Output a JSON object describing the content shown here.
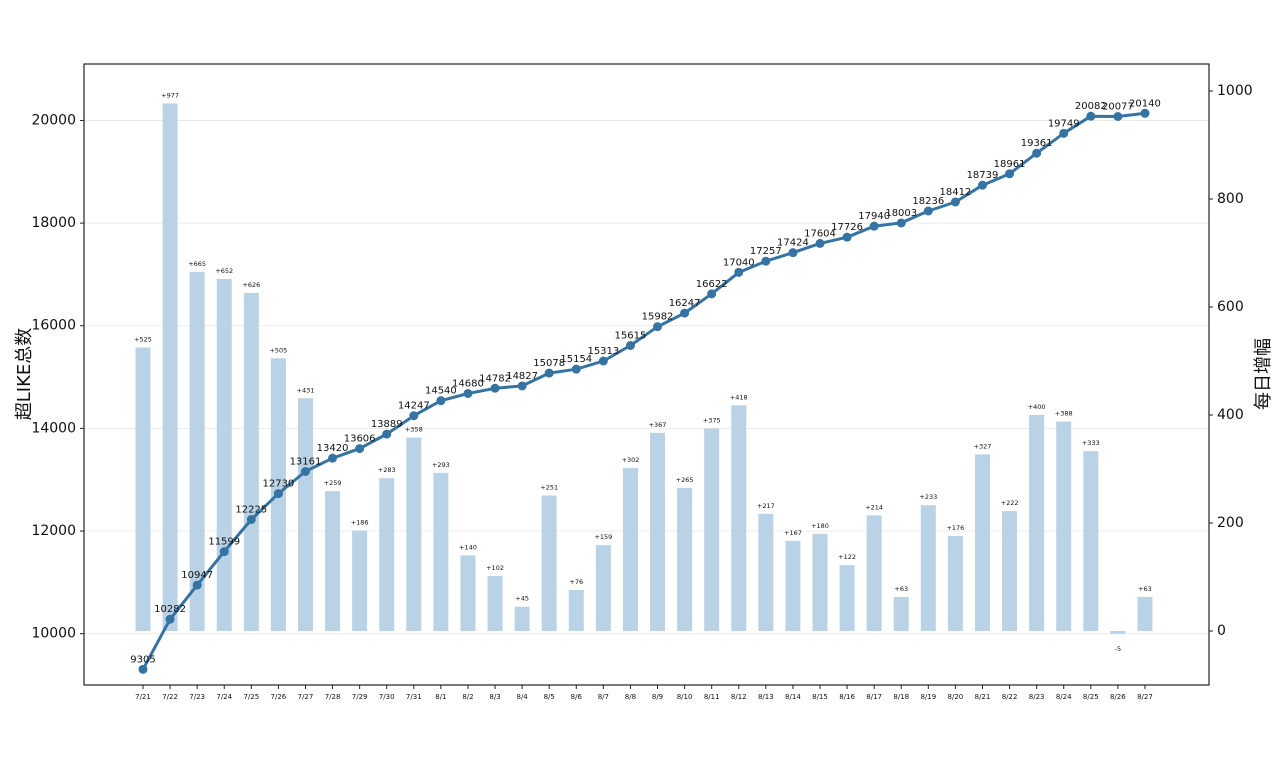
{
  "chart_data": {
    "type": "bar+line",
    "title": "",
    "categories": [
      "7/21",
      "7/22",
      "7/23",
      "7/24",
      "7/25",
      "7/26",
      "7/27",
      "7/28",
      "7/29",
      "7/30",
      "7/31",
      "8/1",
      "8/2",
      "8/3",
      "8/4",
      "8/5",
      "8/6",
      "8/7",
      "8/8",
      "8/9",
      "8/10",
      "8/11",
      "8/12",
      "8/13",
      "8/14",
      "8/15",
      "8/16",
      "8/17",
      "8/18",
      "8/19",
      "8/20",
      "8/21",
      "8/22",
      "8/23",
      "8/24",
      "8/25",
      "8/26",
      "8/27"
    ],
    "line_series": {
      "axis": "left",
      "color": "#3573a3",
      "values": [
        9305,
        10282,
        10947,
        11599,
        12225,
        12730,
        13161,
        13420,
        13606,
        13889,
        14247,
        14540,
        14680,
        14782,
        14827,
        15078,
        15154,
        15313,
        15615,
        15982,
        16247,
        16622,
        17040,
        17257,
        17424,
        17604,
        17726,
        17940,
        18003,
        18236,
        18412,
        18739,
        18961,
        19361,
        19749,
        20082,
        20077,
        20140
      ],
      "labels": [
        "9305",
        "10282",
        "10947",
        "11599",
        "12225",
        "12730",
        "13161",
        "13420",
        "13606",
        "13889",
        "14247",
        "14540",
        "14680",
        "14782",
        "14827",
        "15078",
        "15154",
        "15313",
        "15615",
        "15982",
        "16247",
        "16622",
        "17040",
        "17257",
        "17424",
        "17604",
        "17726",
        "17940",
        "18003",
        "18236",
        "18412",
        "18739",
        "18961",
        "19361",
        "19749",
        "20082",
        "20077",
        "20140"
      ]
    },
    "bar_series": {
      "axis": "right",
      "color": "#b9d2e6",
      "values": [
        525,
        977,
        665,
        652,
        626,
        505,
        431,
        259,
        186,
        283,
        358,
        293,
        140,
        102,
        45,
        251,
        76,
        159,
        302,
        367,
        265,
        375,
        418,
        217,
        167,
        180,
        122,
        214,
        63,
        233,
        176,
        327,
        222,
        400,
        388,
        333,
        -5,
        63
      ],
      "labels": [
        "+525",
        "+977",
        "+665",
        "+652",
        "+626",
        "+505",
        "+431",
        "+259",
        "+186",
        "+283",
        "+358",
        "+293",
        "+140",
        "+102",
        "+45",
        "+251",
        "+76",
        "+159",
        "+302",
        "+367",
        "+265",
        "+375",
        "+418",
        "+217",
        "+167",
        "+180",
        "+122",
        "+214",
        "+63",
        "+233",
        "+176",
        "+327",
        "+222",
        "+400",
        "+388",
        "+333",
        "-5",
        "+63"
      ]
    },
    "left_axis": {
      "label": "超LIKE总数",
      "ylim": [
        9000,
        21100
      ],
      "ticks": [
        10000,
        12000,
        14000,
        16000,
        18000,
        20000
      ],
      "tick_labels": [
        "10000",
        "12000",
        "14000",
        "16000",
        "18000",
        "20000"
      ]
    },
    "right_axis": {
      "label": "每日增幅",
      "ylim": [
        -100,
        1050
      ],
      "ticks": [
        0,
        200,
        400,
        600,
        800,
        1000
      ],
      "tick_labels": [
        "0",
        "200",
        "400",
        "600",
        "800",
        "1000"
      ]
    },
    "grid": "horizontal",
    "legend": "none"
  }
}
